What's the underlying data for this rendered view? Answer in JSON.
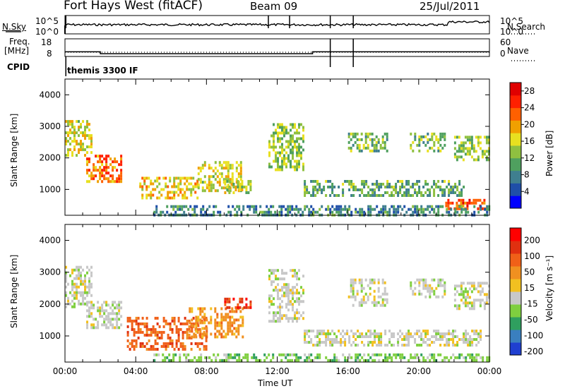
{
  "header": {
    "station": "Fort Hays West (fitACF)",
    "beam": "Beam 09",
    "date": "25/Jul/2011"
  },
  "side_labels": {
    "nsky": "N.Sky",
    "freq_top": "Freq.",
    "freq_unit": "[MHz]",
    "cpid": "CPID",
    "nsearch": "N.Search",
    "nave": "Nave"
  },
  "cpid_value": "themis 3300 IF",
  "noise_axis": {
    "left_ticks": [
      "10^5",
      "10^0"
    ],
    "right_ticks": [
      "10^5",
      "10^0"
    ]
  },
  "freq_axis": {
    "left_ticks": [
      "18",
      "8"
    ],
    "right_ticks": [
      "60",
      "0"
    ]
  },
  "colors": {
    "power_scale": [
      "#0000ff",
      "#1f4fa8",
      "#3f7f8f",
      "#4fa05f",
      "#8fc040",
      "#e8e020",
      "#f0a000",
      "#ff6000",
      "#ff2000",
      "#e00000"
    ],
    "velocity_scale": [
      "#1f3fd0",
      "#3a7fbf",
      "#2f9f5f",
      "#7fcf3f",
      "#c8c8c8",
      "#f2c020",
      "#f09020",
      "#f06018",
      "#e03010",
      "#ff0000"
    ]
  },
  "chart_data": [
    {
      "type": "heatmap",
      "name": "power",
      "ylabel": "Slant Range [km]",
      "ylim": [
        180,
        4500
      ],
      "yticks": [
        1000,
        2000,
        3000,
        4000
      ],
      "colorbar_label": "Power [dB]",
      "colorbar_ticks": [
        4,
        8,
        12,
        16,
        20,
        24,
        28
      ],
      "colorbar_range": [
        0,
        30
      ],
      "blobs": [
        {
          "t0": 0.0,
          "t1": 1.5,
          "r0": 2100,
          "r1": 3200,
          "level": 0.55
        },
        {
          "t0": 1.2,
          "t1": 3.2,
          "r0": 1250,
          "r1": 2100,
          "level": 0.75
        },
        {
          "t0": 4.2,
          "t1": 7.5,
          "r0": 700,
          "r1": 1400,
          "level": 0.6
        },
        {
          "t0": 7.5,
          "t1": 10.0,
          "r0": 1000,
          "r1": 1900,
          "level": 0.55
        },
        {
          "t0": 9.0,
          "t1": 10.5,
          "r0": 900,
          "r1": 1300,
          "level": 0.5
        },
        {
          "t0": 11.5,
          "t1": 13.5,
          "r0": 1600,
          "r1": 3100,
          "level": 0.45
        },
        {
          "t0": 13.5,
          "t1": 22.5,
          "r0": 800,
          "r1": 1300,
          "level": 0.35
        },
        {
          "t0": 16.0,
          "t1": 18.2,
          "r0": 2200,
          "r1": 2800,
          "level": 0.4
        },
        {
          "t0": 19.5,
          "t1": 21.5,
          "r0": 2200,
          "r1": 2800,
          "level": 0.4
        },
        {
          "t0": 22.0,
          "t1": 24.0,
          "r0": 1900,
          "r1": 2700,
          "level": 0.45
        },
        {
          "t0": 21.5,
          "t1": 23.8,
          "r0": 350,
          "r1": 700,
          "level": 0.85
        },
        {
          "t0": 5.0,
          "t1": 24.0,
          "r0": 200,
          "r1": 500,
          "level": 0.25
        }
      ]
    },
    {
      "type": "heatmap",
      "name": "velocity",
      "ylabel": "Slant Range [km]",
      "ylim": [
        180,
        4500
      ],
      "yticks": [
        1000,
        2000,
        3000,
        4000
      ],
      "colorbar_label": "Velocity [m s⁻¹]",
      "colorbar_ticks": [
        "200",
        "100",
        "50",
        "15",
        "-15",
        "-50",
        "-100",
        "-200"
      ],
      "blobs": [
        {
          "t0": 0.0,
          "t1": 1.5,
          "r0": 1900,
          "r1": 3200,
          "level": 4
        },
        {
          "t0": 1.2,
          "t1": 3.2,
          "r0": 1250,
          "r1": 2100,
          "level": 4
        },
        {
          "t0": 3.5,
          "t1": 8.0,
          "r0": 600,
          "r1": 1600,
          "level": 7
        },
        {
          "t0": 7.0,
          "t1": 10.0,
          "r0": 1000,
          "r1": 1900,
          "level": 6
        },
        {
          "t0": 9.0,
          "t1": 10.5,
          "r0": 1900,
          "r1": 2200,
          "level": 8
        },
        {
          "t0": 11.5,
          "t1": 13.5,
          "r0": 1500,
          "r1": 3100,
          "level": 4
        },
        {
          "t0": 13.5,
          "t1": 23.5,
          "r0": 700,
          "r1": 1200,
          "level": 4
        },
        {
          "t0": 16.0,
          "t1": 18.2,
          "r0": 2000,
          "r1": 2800,
          "level": 4
        },
        {
          "t0": 19.5,
          "t1": 21.5,
          "r0": 2200,
          "r1": 2800,
          "level": 4
        },
        {
          "t0": 22.0,
          "t1": 24.0,
          "r0": 1900,
          "r1": 2700,
          "level": 4
        },
        {
          "t0": 5.0,
          "t1": 24.0,
          "r0": 200,
          "r1": 450,
          "level": 3
        }
      ]
    }
  ],
  "time_axis": {
    "label": "Time UT",
    "ticks": [
      "00:00",
      "04:00",
      "08:00",
      "12:00",
      "16:00",
      "20:00",
      "00:00"
    ]
  }
}
